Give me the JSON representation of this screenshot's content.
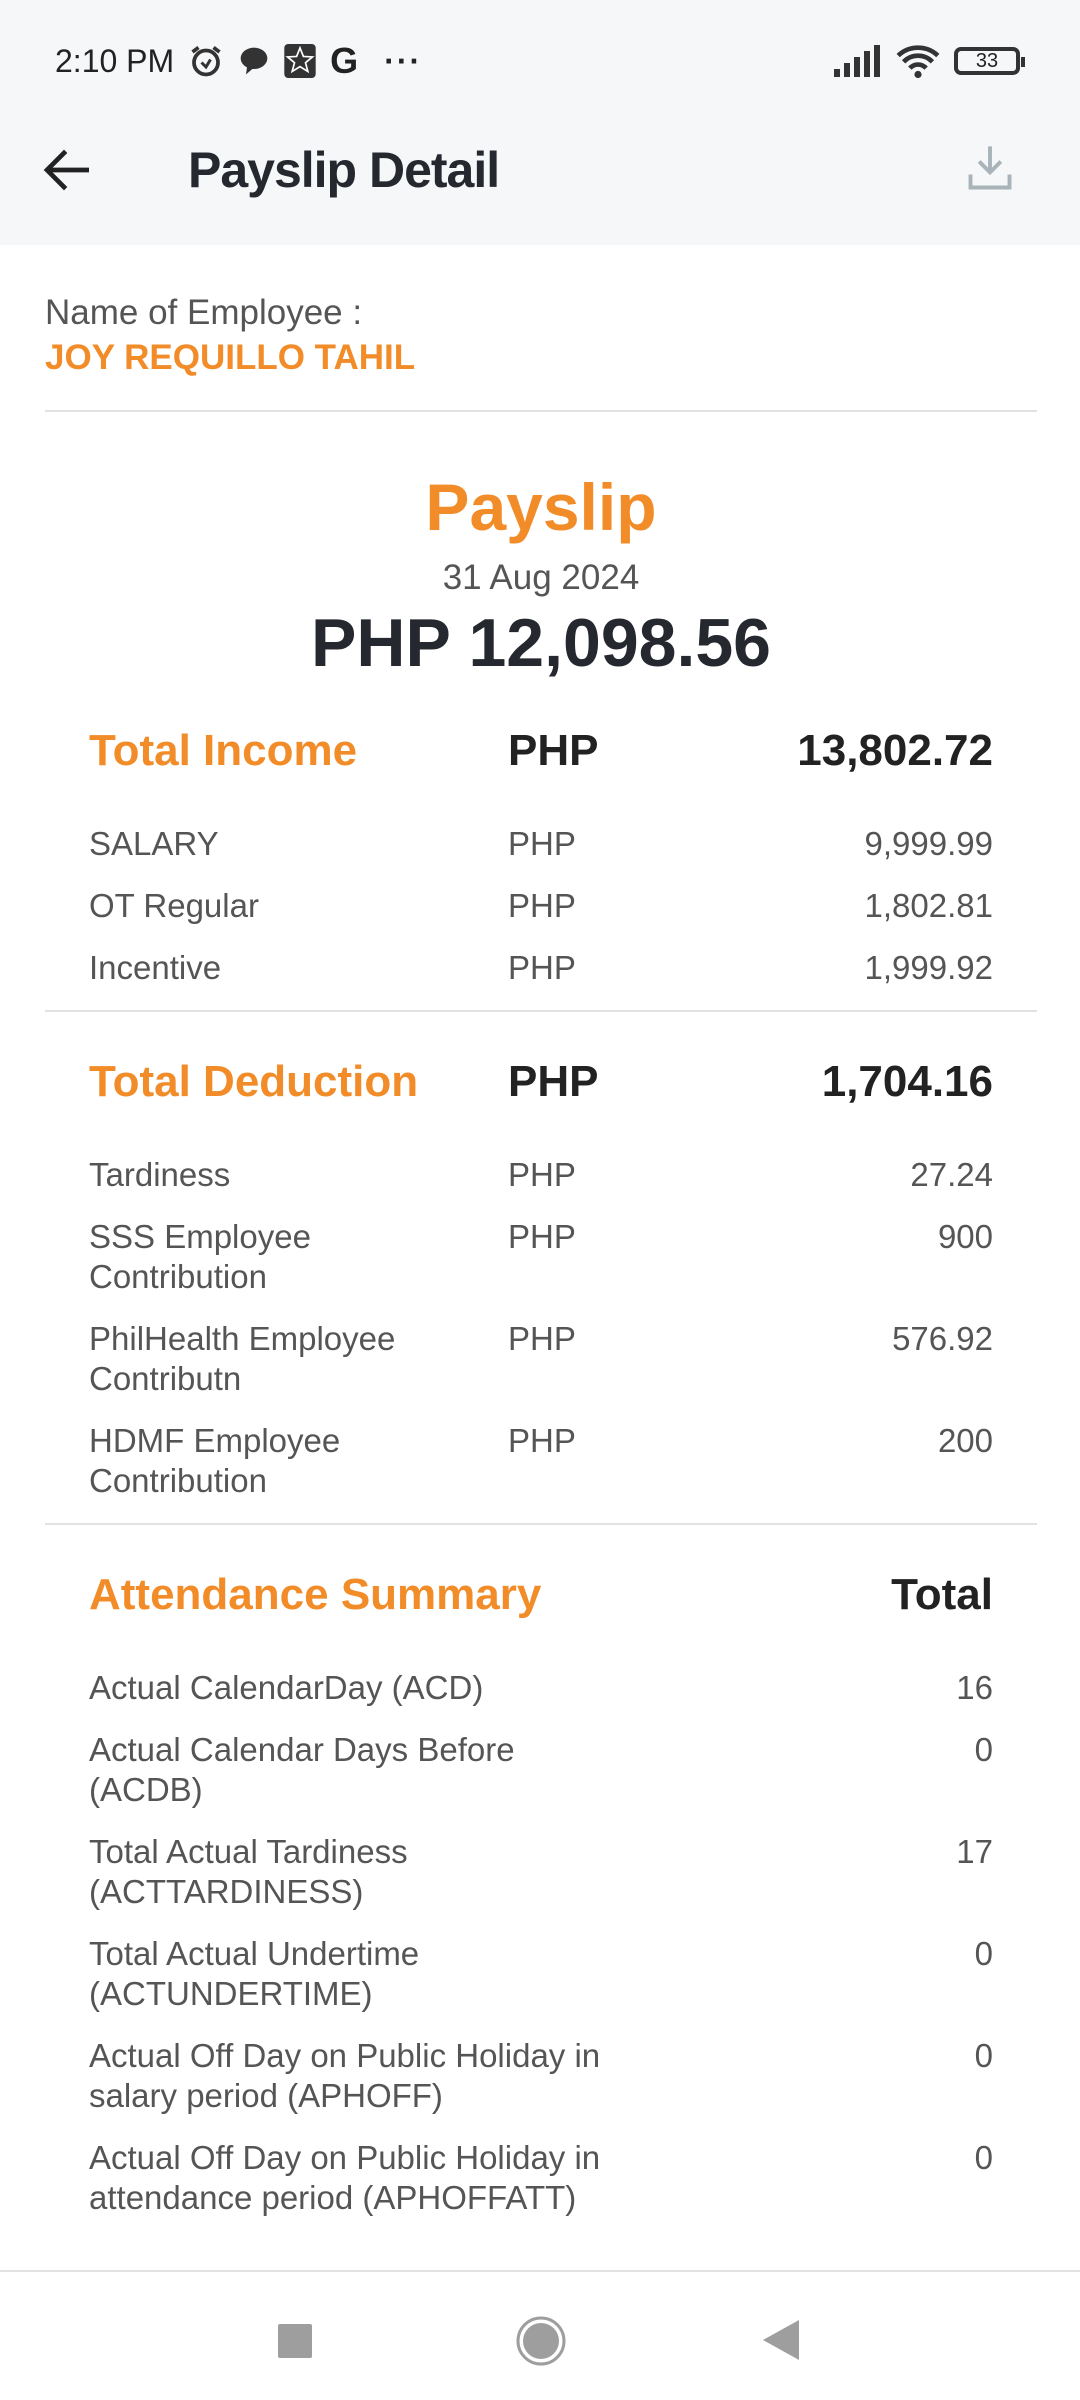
{
  "status_bar": {
    "time": "2:10 PM",
    "battery": "33",
    "icons": [
      "alarm-icon",
      "chat-icon",
      "app-star-icon",
      "google-icon",
      "more-icon",
      "signal-icon",
      "wifi-icon",
      "battery-icon"
    ]
  },
  "header": {
    "title": "Payslip Detail",
    "back_icon": "arrow-left-icon",
    "download_icon": "download-icon"
  },
  "employee": {
    "label": "Name of Employee :",
    "name": "JOY REQUILLO TAHIL"
  },
  "payslip": {
    "title": "Payslip",
    "date": "31 Aug 2024",
    "net_amount": "PHP 12,098.56"
  },
  "income": {
    "title": "Total Income",
    "currency": "PHP",
    "total": "13,802.72",
    "items": [
      {
        "label": "SALARY",
        "currency": "PHP",
        "value": "9,999.99"
      },
      {
        "label": "OT Regular",
        "currency": "PHP",
        "value": "1,802.81"
      },
      {
        "label": "Incentive",
        "currency": "PHP",
        "value": "1,999.92"
      }
    ]
  },
  "deduction": {
    "title": "Total Deduction",
    "currency": "PHP",
    "total": "1,704.16",
    "items": [
      {
        "label": "Tardiness",
        "currency": "PHP",
        "value": "27.24"
      },
      {
        "label": "SSS Employee Contribution",
        "currency": "PHP",
        "value": "900"
      },
      {
        "label": "PhilHealth Employee Contributn",
        "currency": "PHP",
        "value": "576.92"
      },
      {
        "label": "HDMF Employee Contribution",
        "currency": "PHP",
        "value": "200"
      }
    ]
  },
  "attendance": {
    "title": "Attendance Summary",
    "total_label": "Total",
    "items": [
      {
        "label": "Actual CalendarDay (ACD)",
        "value": "16"
      },
      {
        "label": "Actual Calendar Days Before (ACDB)",
        "value": "0"
      },
      {
        "label": "Total Actual Tardiness (ACTTARDINESS)",
        "value": "17"
      },
      {
        "label": "Total Actual Undertime (ACTUNDERTIME)",
        "value": "0"
      },
      {
        "label": "Actual Off Day on Public Holiday in salary period (APHOFF)",
        "value": "0"
      },
      {
        "label": "Actual Off Day on Public Holiday in attendance period (APHOFFATT)",
        "value": "0"
      }
    ]
  },
  "colors": {
    "accent": "#f28c28",
    "header_bg": "#f6f7f9",
    "text_dark": "#262830"
  }
}
